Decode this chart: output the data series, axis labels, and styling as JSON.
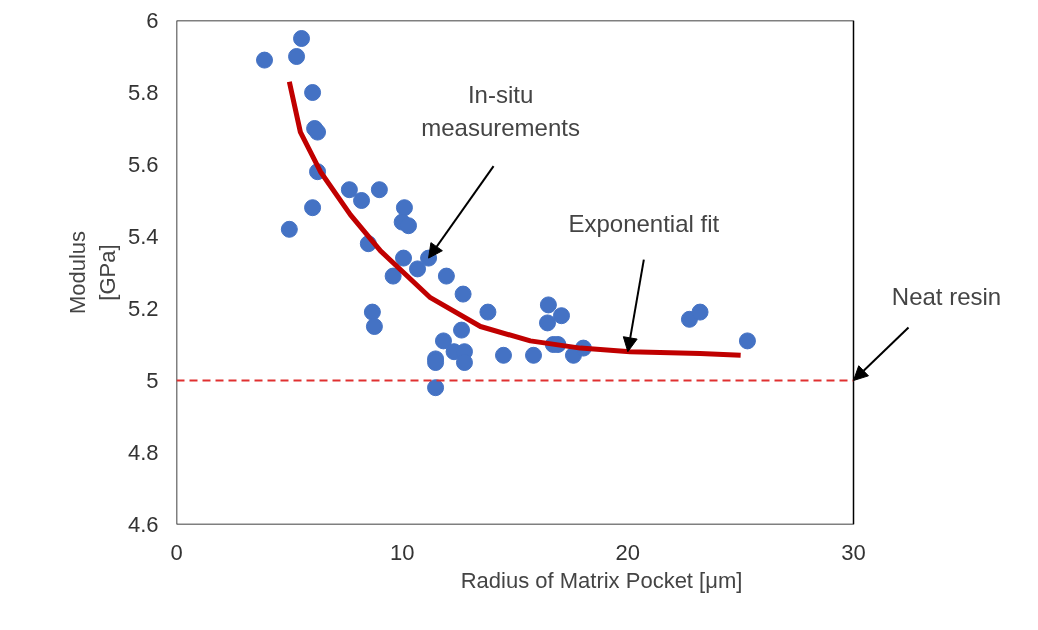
{
  "chart_data": {
    "type": "scatter",
    "xlabel": "Radius of Matrix Pocket [μm]",
    "ylabel": "Modulus\n[GPa]",
    "xlim": [
      0,
      30
    ],
    "xticks": [
      0,
      10,
      20,
      30
    ],
    "ylim": [
      4.6,
      6
    ],
    "yticks": [
      4.6,
      4.8,
      5,
      5.2,
      5.4,
      5.6,
      5.8,
      6
    ],
    "grid": false,
    "series": [
      {
        "marker": "circle",
        "color": "#4472c4",
        "x": [
          3.9,
          5.32,
          5.54,
          6.03,
          6.12,
          6.25,
          6.25,
          6.03,
          5.0,
          7.66,
          8.2,
          8.99,
          10.1,
          10.0,
          10.28,
          8.5,
          10.06,
          10.68,
          9.6,
          11.17,
          11.96,
          12.7,
          13.8,
          8.68,
          8.77,
          12.63,
          11.83,
          12.3,
          12.76,
          12.76,
          11.48,
          11.48,
          11.48,
          14.49,
          15.82,
          16.48,
          16.44,
          17.06,
          16.7,
          16.9,
          17.59,
          18.03,
          22.73,
          23.2,
          25.3
        ],
        "values": [
          5.89,
          5.9,
          5.95,
          5.8,
          5.7,
          5.69,
          5.58,
          5.48,
          5.42,
          5.53,
          5.5,
          5.53,
          5.48,
          5.44,
          5.43,
          5.38,
          5.34,
          5.31,
          5.29,
          5.34,
          5.29,
          5.24,
          5.19,
          5.19,
          5.15,
          5.14,
          5.11,
          5.08,
          5.08,
          5.05,
          5.06,
          5.05,
          4.98,
          5.07,
          5.07,
          5.21,
          5.16,
          5.18,
          5.1,
          5.1,
          5.07,
          5.09,
          5.17,
          5.19,
          5.11
        ]
      },
      {
        "type": "line",
        "color": "#c00000",
        "line_style": "solid",
        "x": [
          5.0,
          5.49,
          6.38,
          7.71,
          9.04,
          11.25,
          13.47,
          15.68,
          17.9,
          20.1,
          23.2,
          25.0
        ],
        "values": [
          5.83,
          5.69,
          5.58,
          5.46,
          5.36,
          5.23,
          5.15,
          5.11,
          5.09,
          5.08,
          5.075,
          5.07
        ]
      }
    ],
    "ref_lines": [
      {
        "axis": "y",
        "value": 5,
        "color": "#e03030",
        "line_style": "dashed"
      }
    ],
    "annotations": [
      {
        "text": "In-situ\nmeasurements",
        "x": 11.17,
        "y": 5.34
      },
      {
        "text": "Exponential fit",
        "x": 20.0,
        "y": 5.08
      },
      {
        "text": "Neat resin",
        "x": 30,
        "y": 5
      }
    ]
  }
}
